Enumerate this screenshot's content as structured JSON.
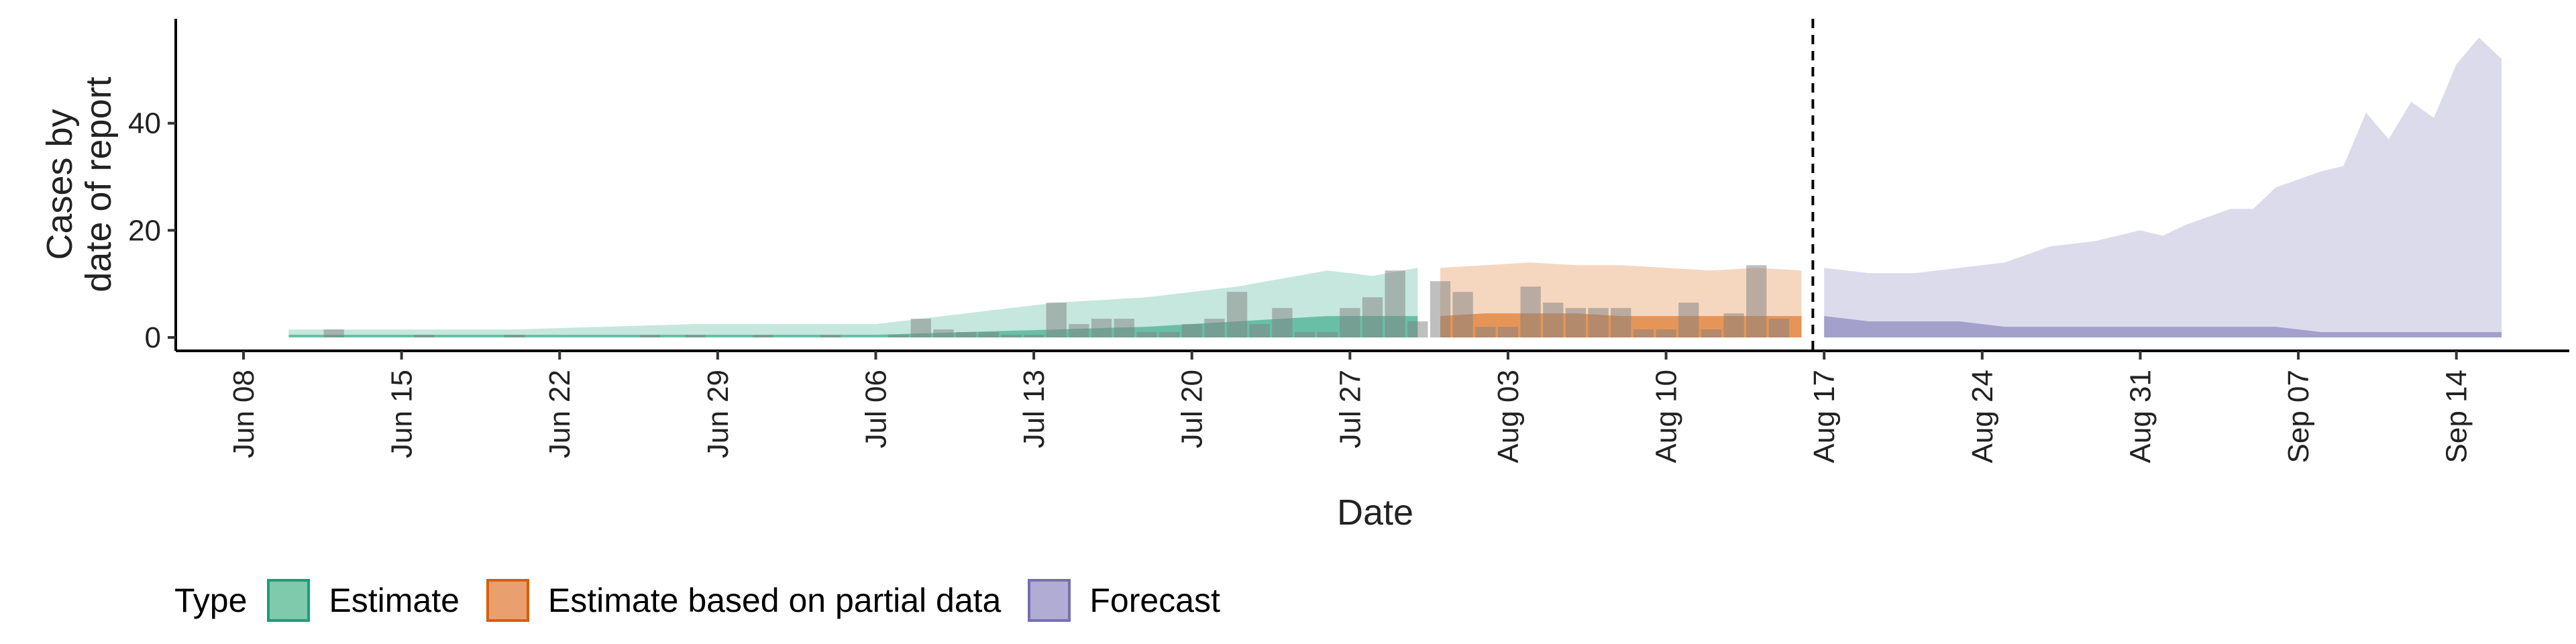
{
  "chart_data": {
    "type": "area",
    "xlabel": "Date",
    "ylabel_lines": [
      "Cases by",
      "date of report"
    ],
    "x_ticks": [
      "Jun 08",
      "Jun 15",
      "Jun 22",
      "Jun 29",
      "Jul 06",
      "Jul 13",
      "Jul 20",
      "Jul 27",
      "Aug 03",
      "Aug 10",
      "Aug 17",
      "Aug 24",
      "Aug 31",
      "Sep 07",
      "Sep 14"
    ],
    "y_ticks": [
      "0",
      "20",
      "40"
    ],
    "x_range": [
      "2020-06-05",
      "2020-09-19"
    ],
    "ylim": [
      -2.5,
      59.5
    ],
    "forecast_cutoff": "2020-08-16",
    "legend": {
      "title": "Type",
      "position": "bottom",
      "items": [
        {
          "label": "Estimate",
          "fill": "#7fc9ad",
          "stroke": "#1b9e77"
        },
        {
          "label": "Estimate based on partial data",
          "fill": "#eaa06e",
          "stroke": "#d95f02"
        },
        {
          "label": "Forecast",
          "fill": "#b1acd4",
          "stroke": "#7570b3"
        }
      ]
    },
    "colors": {
      "estimate": "#1b9e77",
      "partial": "#d95f02",
      "forecast": "#7570b3",
      "bars": "#808080"
    },
    "series": [
      {
        "name": "Estimate",
        "x": [
          "2020-06-10",
          "2020-06-20",
          "2020-06-28",
          "2020-07-06",
          "2020-07-10",
          "2020-07-14",
          "2020-07-18",
          "2020-07-22",
          "2020-07-26",
          "2020-07-28",
          "2020-07-30"
        ],
        "outer_upper": [
          1.5,
          1.5,
          2.5,
          2.5,
          4.5,
          6.5,
          7.5,
          9.5,
          12.5,
          11.5,
          13
        ],
        "inner_upper": [
          0.5,
          0.5,
          0.5,
          0.5,
          1,
          1.5,
          2,
          3,
          4,
          4,
          4
        ],
        "lower": [
          0,
          0,
          0,
          0,
          0,
          0,
          0,
          0,
          0,
          0,
          0
        ]
      },
      {
        "name": "Estimate based on partial data",
        "x": [
          "2020-07-31",
          "2020-08-02",
          "2020-08-04",
          "2020-08-06",
          "2020-08-08",
          "2020-08-10",
          "2020-08-12",
          "2020-08-14",
          "2020-08-16"
        ],
        "outer_upper": [
          13,
          13.5,
          14,
          13.5,
          13.5,
          13,
          12.5,
          13,
          12.5
        ],
        "inner_upper": [
          4,
          4.5,
          4.5,
          4.5,
          4,
          4,
          4,
          4,
          4
        ],
        "lower": [
          0,
          0,
          0,
          0,
          0,
          0,
          0,
          0,
          0
        ]
      },
      {
        "name": "Forecast",
        "x": [
          "2020-08-17",
          "2020-08-19",
          "2020-08-21",
          "2020-08-23",
          "2020-08-25",
          "2020-08-27",
          "2020-08-29",
          "2020-08-31",
          "2020-09-01",
          "2020-09-02",
          "2020-09-04",
          "2020-09-05",
          "2020-09-06",
          "2020-09-08",
          "2020-09-09",
          "2020-09-10",
          "2020-09-11",
          "2020-09-12",
          "2020-09-13",
          "2020-09-14",
          "2020-09-15",
          "2020-09-16"
        ],
        "outer_upper": [
          13,
          12,
          12,
          13,
          14,
          17,
          18,
          20,
          19,
          21,
          24,
          24,
          28,
          31,
          32,
          42,
          37,
          44,
          41,
          51,
          56,
          52
        ],
        "inner_upper": [
          4,
          3,
          3,
          3,
          2,
          2,
          2,
          2,
          2,
          2,
          2,
          2,
          2,
          1,
          1,
          1,
          1,
          1,
          1,
          1,
          1,
          1
        ],
        "lower": [
          0,
          0,
          0,
          0,
          0,
          0,
          0,
          0,
          0,
          0,
          0,
          0,
          0,
          0,
          0,
          0,
          0,
          0,
          0,
          0,
          0,
          0
        ]
      }
    ],
    "observed_cases": {
      "x": [
        "2020-06-12",
        "2020-06-16",
        "2020-06-20",
        "2020-06-26",
        "2020-06-28",
        "2020-07-01",
        "2020-07-04",
        "2020-07-07",
        "2020-07-08",
        "2020-07-09",
        "2020-07-10",
        "2020-07-11",
        "2020-07-12",
        "2020-07-13",
        "2020-07-14",
        "2020-07-15",
        "2020-07-16",
        "2020-07-17",
        "2020-07-18",
        "2020-07-19",
        "2020-07-20",
        "2020-07-21",
        "2020-07-22",
        "2020-07-23",
        "2020-07-24",
        "2020-07-25",
        "2020-07-26",
        "2020-07-27",
        "2020-07-28",
        "2020-07-29",
        "2020-07-30",
        "2020-07-31",
        "2020-08-01",
        "2020-08-02",
        "2020-08-03",
        "2020-08-04",
        "2020-08-05",
        "2020-08-06",
        "2020-08-07",
        "2020-08-08",
        "2020-08-09",
        "2020-08-10",
        "2020-08-11",
        "2020-08-12",
        "2020-08-13",
        "2020-08-14",
        "2020-08-15"
      ],
      "values": [
        1.5,
        0.5,
        0.5,
        0.5,
        0.5,
        0.5,
        0.5,
        0.5,
        3.5,
        1.5,
        1,
        1,
        0.5,
        0.5,
        6.5,
        2.5,
        3.5,
        3.5,
        1,
        1,
        2.5,
        3.5,
        8.5,
        2.5,
        5.5,
        1,
        1,
        5.5,
        7.5,
        12.5,
        3,
        10.5,
        8.5,
        2,
        2,
        9.5,
        6.5,
        5.5,
        5.5,
        5.5,
        1.5,
        1.5,
        6.5,
        1.5,
        4.5,
        13.5,
        3.5
      ]
    }
  }
}
